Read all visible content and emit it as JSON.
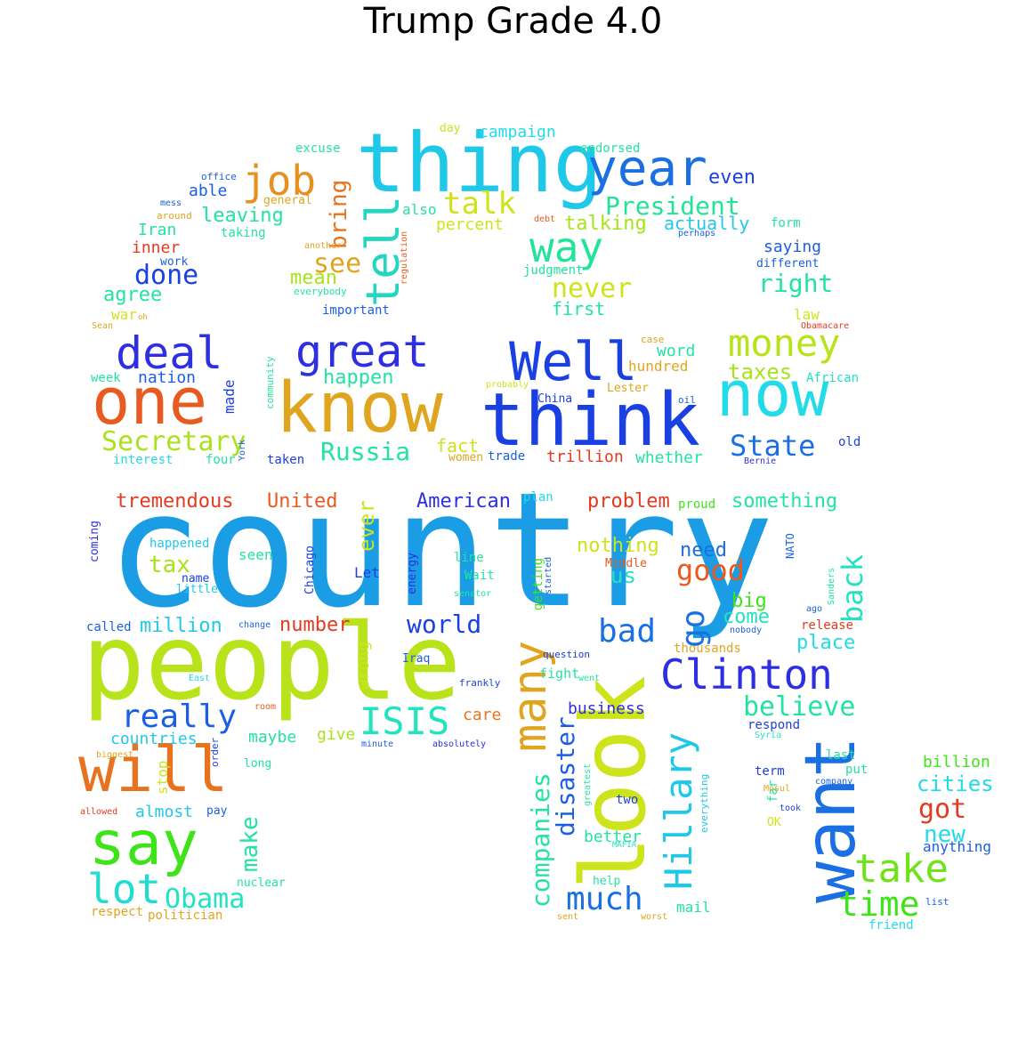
{
  "title": "Trump Grade 4.0",
  "palette": {
    "red": "#e63a20",
    "orange": "#e8731f",
    "amber": "#e0a51e",
    "yellow": "#cde31a",
    "lime": "#a8e31a",
    "green": "#3fe31a",
    "mint": "#3ee68a",
    "aqua": "#22e3d6",
    "cyan": "#1ec8e8",
    "sky": "#1b9de6",
    "blue": "#1a5fe3",
    "indigo": "#2e2fe0"
  },
  "words": [
    {
      "text": "country",
      "color": "#1b9de6",
      "weight": 100
    },
    {
      "text": "people",
      "color": "#b8e31a",
      "weight": 70
    },
    {
      "text": "look",
      "color": "#cde31a",
      "weight": 62
    },
    {
      "text": "thing",
      "color": "#1ec8e8",
      "weight": 58
    },
    {
      "text": "know",
      "color": "#e0a51e",
      "weight": 55
    },
    {
      "text": "think",
      "color": "#1a3fe3",
      "weight": 55
    },
    {
      "text": "want",
      "color": "#1a6fe3",
      "weight": 50
    },
    {
      "text": "one",
      "color": "#e85a1f",
      "weight": 48
    },
    {
      "text": "will",
      "color": "#e8731f",
      "weight": 48
    },
    {
      "text": "say",
      "color": "#3fe31a",
      "weight": 45
    },
    {
      "text": "now",
      "color": "#22dbe8",
      "weight": 45
    },
    {
      "text": "Well",
      "color": "#1a3fe3",
      "weight": 38
    },
    {
      "text": "year",
      "color": "#1a6fe3",
      "weight": 37
    },
    {
      "text": "many",
      "color": "#e0a51e",
      "weight": 37
    },
    {
      "text": "tell",
      "color": "#22d6c0",
      "weight": 36
    },
    {
      "text": "great",
      "color": "#2e2fe0",
      "weight": 34
    },
    {
      "text": "deal",
      "color": "#2e2fe0",
      "weight": 34
    },
    {
      "text": "money",
      "color": "#b8e31a",
      "weight": 32
    },
    {
      "text": "Clinton",
      "color": "#2e2fe0",
      "weight": 32
    },
    {
      "text": "Hillary",
      "color": "#1ec8e8",
      "weight": 30
    },
    {
      "text": "take",
      "color": "#6fe31a",
      "weight": 30
    },
    {
      "text": "job",
      "color": "#e8901f",
      "weight": 30
    },
    {
      "text": "way",
      "color": "#22e39a",
      "weight": 30
    },
    {
      "text": "lot",
      "color": "#22dbd0",
      "weight": 30
    },
    {
      "text": "ISIS",
      "color": "#22e3c0",
      "weight": 28
    },
    {
      "text": "time",
      "color": "#3fe31a",
      "weight": 26
    },
    {
      "text": "really",
      "color": "#1a5fe3",
      "weight": 26
    },
    {
      "text": "bad",
      "color": "#1a6fe3",
      "weight": 26
    },
    {
      "text": "go",
      "color": "#1a6fe3",
      "weight": 26
    },
    {
      "text": "much",
      "color": "#1a6fe3",
      "weight": 26
    },
    {
      "text": "back",
      "color": "#22e3c0",
      "weight": 24
    },
    {
      "text": "Secretary",
      "color": "#a8e31a",
      "weight": 24
    },
    {
      "text": "talk",
      "color": "#cde31a",
      "weight": 24
    },
    {
      "text": "President",
      "color": "#22e39a",
      "weight": 22
    },
    {
      "text": "companies",
      "color": "#22e3a0",
      "weight": 22
    },
    {
      "text": "disaster",
      "color": "#1a5fe3",
      "weight": 22
    },
    {
      "text": "Obama",
      "color": "#22e3c0",
      "weight": 22
    },
    {
      "text": "good",
      "color": "#e85a1f",
      "weight": 22
    },
    {
      "text": "got",
      "color": "#e63a20",
      "weight": 22
    },
    {
      "text": "believe",
      "color": "#22e3a0",
      "weight": 22
    },
    {
      "text": "State",
      "color": "#1a6fe3",
      "weight": 22
    },
    {
      "text": "Russia",
      "color": "#22e3a0",
      "weight": 20
    },
    {
      "text": "done",
      "color": "#1a3fe3",
      "weight": 20
    },
    {
      "text": "world",
      "color": "#1a3fe3",
      "weight": 20
    },
    {
      "text": "see",
      "color": "#e0a51e",
      "weight": 20
    },
    {
      "text": "right",
      "color": "#22e3a0",
      "weight": 20
    },
    {
      "text": "bring",
      "color": "#e8731f",
      "weight": 20
    },
    {
      "text": "never",
      "color": "#cde31a",
      "weight": 20
    },
    {
      "text": "new",
      "color": "#22dbe8",
      "weight": 20
    },
    {
      "text": "make",
      "color": "#22e3a0",
      "weight": 18
    },
    {
      "text": "tax",
      "color": "#a8e31a",
      "weight": 18
    },
    {
      "text": "us",
      "color": "#22e3c0",
      "weight": 18
    },
    {
      "text": "ever",
      "color": "#cde31a",
      "weight": 18
    },
    {
      "text": "taxes",
      "color": "#a8e31a",
      "weight": 18
    },
    {
      "text": "million",
      "color": "#22c8e8",
      "weight": 18
    },
    {
      "text": "happen",
      "color": "#22e3a0",
      "weight": 18
    },
    {
      "text": "cities",
      "color": "#22dbe8",
      "weight": 18
    },
    {
      "text": "place",
      "color": "#22dbe8",
      "weight": 18
    },
    {
      "text": "tremendous",
      "color": "#e63a20",
      "weight": 18
    },
    {
      "text": "United",
      "color": "#e85a1f",
      "weight": 18
    },
    {
      "text": "American",
      "color": "#2e2fe0",
      "weight": 18
    },
    {
      "text": "problem",
      "color": "#e63a20",
      "weight": 18
    },
    {
      "text": "something",
      "color": "#22e3a0",
      "weight": 18
    },
    {
      "text": "leaving",
      "color": "#22e3a0",
      "weight": 18
    },
    {
      "text": "agree",
      "color": "#22e3a0",
      "weight": 18
    },
    {
      "text": "mean",
      "color": "#a8e31a",
      "weight": 18
    },
    {
      "text": "come",
      "color": "#22e3c0",
      "weight": 18
    },
    {
      "text": "big",
      "color": "#3fe31a",
      "weight": 18
    },
    {
      "text": "need",
      "color": "#1a6fe3",
      "weight": 18
    },
    {
      "text": "number",
      "color": "#e63a20",
      "weight": 18
    },
    {
      "text": "talking",
      "color": "#a8e31a",
      "weight": 18
    },
    {
      "text": "nothing",
      "color": "#cde31a",
      "weight": 18
    },
    {
      "text": "even",
      "color": "#1a3fe3",
      "weight": 18
    },
    {
      "text": "first",
      "color": "#22e3a0",
      "weight": 16
    },
    {
      "text": "actually",
      "color": "#22c8e8",
      "weight": 16
    },
    {
      "text": "wrong",
      "color": "#cde31a",
      "weight": 16
    },
    {
      "text": "countries",
      "color": "#22c8e8",
      "weight": 16
    },
    {
      "text": "maybe",
      "color": "#22e3a0",
      "weight": 16
    },
    {
      "text": "almost",
      "color": "#22c8e8",
      "weight": 16
    },
    {
      "text": "billion",
      "color": "#3fe31a",
      "weight": 16
    },
    {
      "text": "anything",
      "color": "#1a5fe3",
      "weight": 14
    },
    {
      "text": "fact",
      "color": "#cde31a",
      "weight": 16
    },
    {
      "text": "stop",
      "color": "#cde31a",
      "weight": 14
    },
    {
      "text": "nation",
      "color": "#1a5fe3",
      "weight": 16
    },
    {
      "text": "care",
      "color": "#e8731f",
      "weight": 16
    },
    {
      "text": "made",
      "color": "#1a3fe3",
      "weight": 14
    },
    {
      "text": "business",
      "color": "#2e2fe0",
      "weight": 14
    },
    {
      "text": "give",
      "color": "#a8e31a",
      "weight": 14
    },
    {
      "text": "better",
      "color": "#22e3a0",
      "weight": 14
    },
    {
      "text": "trillion",
      "color": "#e63a20",
      "weight": 14
    },
    {
      "text": "word",
      "color": "#22e3a0",
      "weight": 14
    },
    {
      "text": "hundred",
      "color": "#e0a51e",
      "weight": 12
    },
    {
      "text": "whether",
      "color": "#22e3a0",
      "weight": 14
    },
    {
      "text": "campaign",
      "color": "#22dbe8",
      "weight": 14
    },
    {
      "text": "percent",
      "color": "#cde31a",
      "weight": 14
    },
    {
      "text": "saying",
      "color": "#1a5fe3",
      "weight": 14
    },
    {
      "text": "able",
      "color": "#1a5fe3",
      "weight": 14
    },
    {
      "text": "inner",
      "color": "#e63a20",
      "weight": 14
    },
    {
      "text": "Iran",
      "color": "#22e3a0",
      "weight": 14
    },
    {
      "text": "excuse",
      "color": "#22e3a0",
      "weight": 12
    },
    {
      "text": "also",
      "color": "#22e3a0",
      "weight": 12
    },
    {
      "text": "war",
      "color": "#cde31a",
      "weight": 12
    },
    {
      "text": "law",
      "color": "#cde31a",
      "weight": 12
    },
    {
      "text": "week",
      "color": "#22e3a0",
      "weight": 12
    },
    {
      "text": "interest",
      "color": "#22dbe8",
      "weight": 12
    },
    {
      "text": "four",
      "color": "#22e3a0",
      "weight": 12
    },
    {
      "text": "taken",
      "color": "#1a3fe3",
      "weight": 12
    },
    {
      "text": "women",
      "color": "#e0a51e",
      "weight": 12
    },
    {
      "text": "trade",
      "color": "#1a5fe3",
      "weight": 12
    },
    {
      "text": "African",
      "color": "#22e3c0",
      "weight": 12
    },
    {
      "text": "old",
      "color": "#1a3fe3",
      "weight": 11
    },
    {
      "text": "important",
      "color": "#1a5fe3",
      "weight": 11
    },
    {
      "text": "endorsed",
      "color": "#22e3a0",
      "weight": 11
    },
    {
      "text": "day",
      "color": "#cde31a",
      "weight": 11
    },
    {
      "text": "form",
      "color": "#22e3a0",
      "weight": 11
    },
    {
      "text": "judgment",
      "color": "#22e3a0",
      "weight": 11
    },
    {
      "text": "taking",
      "color": "#22e3a0",
      "weight": 11
    },
    {
      "text": "general",
      "color": "#e0a51e",
      "weight": 11
    },
    {
      "text": "different",
      "color": "#1a5fe3",
      "weight": 11
    },
    {
      "text": "work",
      "color": "#1a5fe3",
      "weight": 11
    },
    {
      "text": "around",
      "color": "#e0a51e",
      "weight": 10
    },
    {
      "text": "office",
      "color": "#1a5fe3",
      "weight": 10
    },
    {
      "text": "mess",
      "color": "#1a5fe3",
      "weight": 9
    },
    {
      "text": "another",
      "color": "#e0a51e",
      "weight": 9
    },
    {
      "text": "regulation",
      "color": "#e85a1f",
      "weight": 9
    },
    {
      "text": "everybody",
      "color": "#22e3a0",
      "weight": 9
    },
    {
      "text": "debt",
      "color": "#e85a1f",
      "weight": 9
    },
    {
      "text": "perhaps",
      "color": "#1a5fe3",
      "weight": 9
    },
    {
      "text": "oh",
      "color": "#e0a51e",
      "weight": 8
    },
    {
      "text": "Sean",
      "color": "#e0a51e",
      "weight": 8
    },
    {
      "text": "Obamacare",
      "color": "#e63a20",
      "weight": 8
    },
    {
      "text": "case",
      "color": "#e0a51e",
      "weight": 10
    },
    {
      "text": "community",
      "color": "#22e3a0",
      "weight": 10
    },
    {
      "text": "probably",
      "color": "#cde31a",
      "weight": 9
    },
    {
      "text": "China",
      "color": "#1a3fe3",
      "weight": 10
    },
    {
      "text": "Lester",
      "color": "#e0a51e",
      "weight": 11
    },
    {
      "text": "oil",
      "color": "#1a5fe3",
      "weight": 9
    },
    {
      "text": "York",
      "color": "#1a5fe3",
      "weight": 9
    },
    {
      "text": "Bernie",
      "color": "#2e2fe0",
      "weight": 9
    },
    {
      "text": "plan",
      "color": "#22dbe8",
      "weight": 12
    },
    {
      "text": "proud",
      "color": "#3fe31a",
      "weight": 12
    },
    {
      "text": "coming",
      "color": "#2e2fe0",
      "weight": 11
    },
    {
      "text": "happened",
      "color": "#22c8e8",
      "weight": 12
    },
    {
      "text": "seen",
      "color": "#22e3a0",
      "weight": 14
    },
    {
      "text": "Chicago",
      "color": "#1a3fe3",
      "weight": 11
    },
    {
      "text": "energy",
      "color": "#2e2fe0",
      "weight": 11
    },
    {
      "text": "line",
      "color": "#22e3a0",
      "weight": 12
    },
    {
      "text": "Wait",
      "color": "#22e3a0",
      "weight": 12
    },
    {
      "text": "Let",
      "color": "#1a3fe3",
      "weight": 14
    },
    {
      "text": "name",
      "color": "#1a3fe3",
      "weight": 11
    },
    {
      "text": "little",
      "color": "#22c8e8",
      "weight": 11
    },
    {
      "text": "senator",
      "color": "#22e3a0",
      "weight": 9
    },
    {
      "text": "getting",
      "color": "#3fe31a",
      "weight": 12
    },
    {
      "text": "started",
      "color": "#1a5fe3",
      "weight": 9
    },
    {
      "text": "Middle",
      "color": "#e85a1f",
      "weight": 11
    },
    {
      "text": "NATO",
      "color": "#1a5fe3",
      "weight": 11
    },
    {
      "text": "Sanders",
      "color": "#22e3a0",
      "weight": 9
    },
    {
      "text": "ago",
      "color": "#1a5fe3",
      "weight": 9
    },
    {
      "text": "nobody",
      "color": "#1a5fe3",
      "weight": 9
    },
    {
      "text": "called",
      "color": "#1a5fe3",
      "weight": 12
    },
    {
      "text": "change",
      "color": "#1a5fe3",
      "weight": 9
    },
    {
      "text": "question",
      "color": "#1a3fe3",
      "weight": 10
    },
    {
      "text": "thousands",
      "color": "#e0a51e",
      "weight": 14
    },
    {
      "text": "release",
      "color": "#e63a20",
      "weight": 12
    },
    {
      "text": "Iraq",
      "color": "#1a5fe3",
      "weight": 11
    },
    {
      "text": "fight",
      "color": "#22e3a0",
      "weight": 12
    },
    {
      "text": "went",
      "color": "#22e3a0",
      "weight": 9
    },
    {
      "text": "East",
      "color": "#22dbe8",
      "weight": 9
    },
    {
      "text": "frankly",
      "color": "#1a3fe3",
      "weight": 10
    },
    {
      "text": "room",
      "color": "#e85a1f",
      "weight": 8
    },
    {
      "text": "respond",
      "color": "#1a3fe3",
      "weight": 12
    },
    {
      "text": "Syria",
      "color": "#22e3c0",
      "weight": 9
    },
    {
      "text": "biggest",
      "color": "#e0a51e",
      "weight": 9
    },
    {
      "text": "order",
      "color": "#1a3fe3",
      "weight": 10
    },
    {
      "text": "minute",
      "color": "#1a5fe3",
      "weight": 8
    },
    {
      "text": "absolutely",
      "color": "#2e2fe0",
      "weight": 9
    },
    {
      "text": "greatest",
      "color": "#22e3a0",
      "weight": 9
    },
    {
      "text": "long",
      "color": "#22e3a0",
      "weight": 12
    },
    {
      "text": "last",
      "color": "#22e3a0",
      "weight": 12
    },
    {
      "text": "term",
      "color": "#1a3fe3",
      "weight": 12
    },
    {
      "text": "put",
      "color": "#22e3a0",
      "weight": 12
    },
    {
      "text": "company",
      "color": "#1a5fe3",
      "weight": 9
    },
    {
      "text": "far",
      "color": "#22e3a0",
      "weight": 11
    },
    {
      "text": "Mosul",
      "color": "#e0a51e",
      "weight": 9
    },
    {
      "text": "took",
      "color": "#1a3fe3",
      "weight": 9
    },
    {
      "text": "OK",
      "color": "#cde31a",
      "weight": 11
    },
    {
      "text": "everything",
      "color": "#22c8e8",
      "weight": 10
    },
    {
      "text": "two",
      "color": "#1a3fe3",
      "weight": 12
    },
    {
      "text": "MAFIA",
      "color": "#22e3c0",
      "weight": 8
    },
    {
      "text": "allowed",
      "color": "#e63a20",
      "weight": 9
    },
    {
      "text": "pay",
      "color": "#1a5fe3",
      "weight": 11
    },
    {
      "text": "nuclear",
      "color": "#22e3a0",
      "weight": 11
    },
    {
      "text": "respect",
      "color": "#e0a51e",
      "weight": 12
    },
    {
      "text": "politician",
      "color": "#e0a51e",
      "weight": 12
    },
    {
      "text": "help",
      "color": "#22e3a0",
      "weight": 11
    },
    {
      "text": "mail",
      "color": "#22e3a0",
      "weight": 14
    },
    {
      "text": "sent",
      "color": "#e0a51e",
      "weight": 9
    },
    {
      "text": "worst",
      "color": "#e0a51e",
      "weight": 9
    },
    {
      "text": "list",
      "color": "#1a5fe3",
      "weight": 10
    },
    {
      "text": "friend",
      "color": "#22dbe8",
      "weight": 12
    }
  ]
}
